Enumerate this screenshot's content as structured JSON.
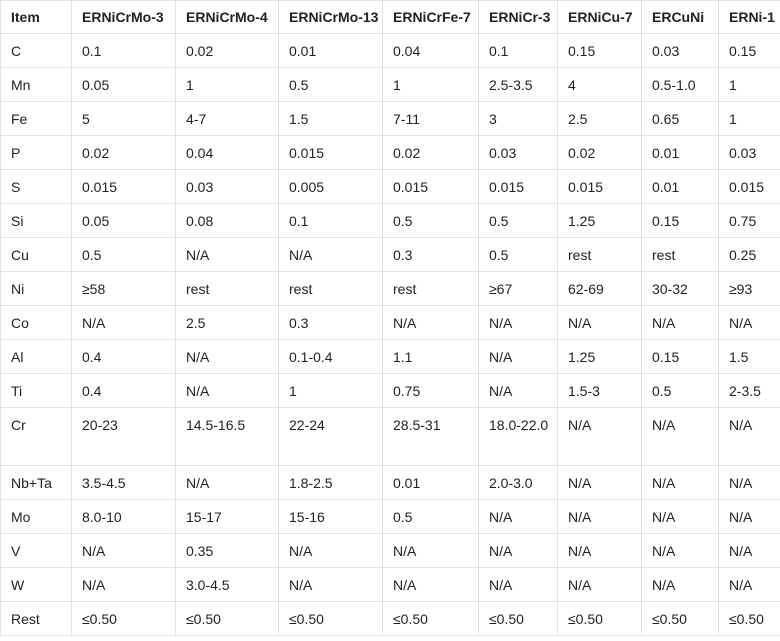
{
  "headers": [
    "Item",
    "ERNiCrMo-3",
    "ERNiCrMo-4",
    "ERNiCrMo-13",
    "ERNiCrFe-7",
    "ERNiCr-3",
    "ERNiCu-7",
    "ERCuNi",
    "ERNi-1"
  ],
  "rows": [
    [
      "C",
      "0.1",
      "0.02",
      "0.01",
      "0.04",
      "0.1",
      "0.15",
      "0.03",
      "0.15"
    ],
    [
      "Mn",
      "0.05",
      "1",
      "0.5",
      "1",
      "2.5-3.5",
      "4",
      "0.5-1.0",
      "1"
    ],
    [
      "Fe",
      "5",
      "4-7",
      "1.5",
      "7-11",
      "3",
      "2.5",
      "0.65",
      "1"
    ],
    [
      "P",
      "0.02",
      "0.04",
      "0.015",
      "0.02",
      "0.03",
      "0.02",
      "0.01",
      "0.03"
    ],
    [
      "S",
      "0.015",
      "0.03",
      "0.005",
      "0.015",
      "0.015",
      "0.015",
      "0.01",
      "0.015"
    ],
    [
      "Si",
      "0.05",
      "0.08",
      "0.1",
      "0.5",
      "0.5",
      "1.25",
      "0.15",
      "0.75"
    ],
    [
      "Cu",
      "0.5",
      "N/A",
      "N/A",
      "0.3",
      "0.5",
      "rest",
      "rest",
      "0.25"
    ],
    [
      "Ni",
      "≥58",
      "rest",
      "rest",
      "rest",
      "≥67",
      "62-69",
      "30-32",
      "≥93"
    ],
    [
      "Co",
      "N/A",
      "2.5",
      "0.3",
      "N/A",
      "N/A",
      "N/A",
      "N/A",
      "N/A"
    ],
    [
      "Al",
      "0.4",
      "N/A",
      "0.1-0.4",
      "1.1",
      "N/A",
      "1.25",
      "0.15",
      "1.5"
    ],
    [
      "Ti",
      "0.4",
      "N/A",
      "1",
      "0.75",
      "N/A",
      "1.5-3",
      "0.5",
      "2-3.5"
    ],
    [
      "Cr",
      "20-23",
      "14.5-16.5",
      "22-24",
      "28.5-31",
      "18.0-22.0",
      "N/A",
      "N/A",
      "N/A"
    ],
    [
      "Nb+Ta",
      "3.5-4.5",
      "N/A",
      "1.8-2.5",
      "0.01",
      "2.0-3.0",
      "N/A",
      "N/A",
      "N/A"
    ],
    [
      "Mo",
      "8.0-10",
      "15-17",
      "15-16",
      "0.5",
      "N/A",
      "N/A",
      "N/A",
      "N/A"
    ],
    [
      "V",
      "N/A",
      "0.35",
      "N/A",
      "N/A",
      "N/A",
      "N/A",
      "N/A",
      "N/A"
    ],
    [
      "W",
      "N/A",
      "3.0-4.5",
      "N/A",
      "N/A",
      "N/A",
      "N/A",
      "N/A",
      "N/A"
    ],
    [
      "Rest",
      "≤0.50",
      "≤0.50",
      "≤0.50",
      "≤0.50",
      "≤0.50",
      "≤0.50",
      "≤0.50",
      "≤0.50"
    ]
  ]
}
